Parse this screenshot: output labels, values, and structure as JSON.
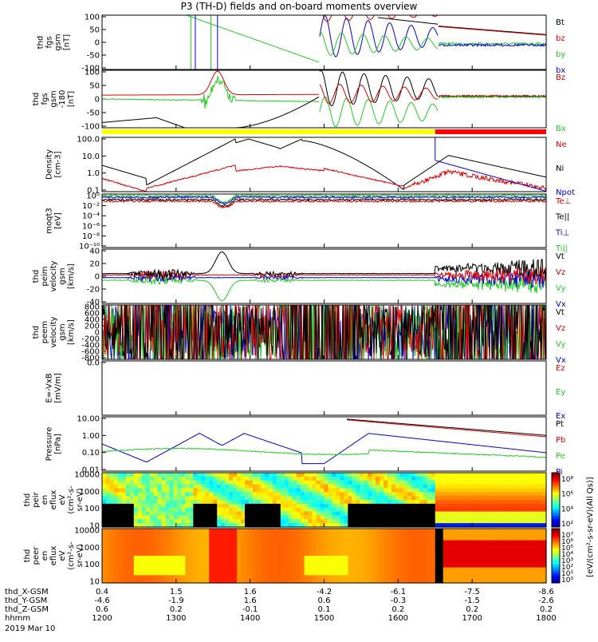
{
  "title": "P3 (TH-D) fields and on-board moments overview",
  "colors": {
    "black": "#000000",
    "red": "#e00000",
    "green": "#22cc22",
    "blue": "#0000d0",
    "yellow": "#ffff00",
    "barred": "#ff0000"
  },
  "chart_data": [
    {
      "type": "line",
      "panel": "fgs",
      "ylabel": [
        "thd",
        "fgs",
        "gsm",
        "[nT]"
      ],
      "yticks": [
        "100",
        "50",
        "0",
        "-50",
        "-100"
      ],
      "legend": [
        "Bt",
        "bz",
        "by",
        "bx"
      ],
      "ylim": [
        -100,
        100
      ]
    },
    {
      "type": "line",
      "panel": "fgs_dsl",
      "ylabel": [
        "thd",
        "fgs",
        "gsm",
        "-180",
        "[nT]"
      ],
      "yticks": [
        "100",
        "50",
        "0",
        "-50",
        "-100"
      ],
      "legend": [
        "Bz",
        "Bx"
      ],
      "ylim": [
        -120,
        100
      ]
    },
    {
      "type": "line",
      "panel": "density",
      "ylabel": [
        "Density",
        "[cm-3]"
      ],
      "yticks": [
        "100.0",
        "10.0",
        "1.0",
        "0.1"
      ],
      "legend": [
        "Ne",
        "Ni",
        "Npot"
      ],
      "scale": "log"
    },
    {
      "type": "line",
      "panel": "temperature",
      "ylabel": [
        "moqt3",
        "[eV]"
      ],
      "yticks": [
        "10⁰",
        "10⁻²",
        "10⁻⁴",
        "10⁻⁶",
        "10⁻⁸",
        "10⁻¹⁰"
      ],
      "legend": [
        "Te⊥",
        "Te||",
        "Ti⊥",
        "Ti||"
      ],
      "scale": "log"
    },
    {
      "type": "line",
      "panel": "peim_velocity",
      "ylabel": [
        "thd",
        "peim",
        "velocity",
        "gsm",
        "[km/s]"
      ],
      "yticks": [
        "40",
        "20",
        "0",
        "-20",
        "-40"
      ],
      "legend": [
        "Vt",
        "Vz",
        "Vy",
        "Vx"
      ],
      "ylim": [
        -40,
        40
      ]
    },
    {
      "type": "line",
      "panel": "peem_velocity",
      "ylabel": [
        "thd",
        "peem",
        "velocity",
        "gsm",
        "[km/s]"
      ],
      "yticks": [
        "800",
        "600",
        "400",
        "200",
        "0",
        "-200",
        "-400",
        "-600",
        "-800"
      ],
      "legend": [
        "Vt",
        "Vz",
        "Vy",
        "Vx"
      ],
      "ylim": [
        -800,
        800
      ]
    },
    {
      "type": "line",
      "panel": "efield",
      "ylabel": [
        "E=-VxB",
        "[mV/m]"
      ],
      "yticks": [
        "0.0"
      ],
      "legend": [
        "Ez",
        "Ey",
        "Ex"
      ]
    },
    {
      "type": "line",
      "panel": "pressure",
      "ylabel": [
        "Pressure",
        "[nPa]"
      ],
      "yticks": [
        "10.00",
        "1.00",
        "0.10",
        "0.01"
      ],
      "legend": [
        "Pt",
        "Pb",
        "Pe",
        "Pi"
      ],
      "scale": "log"
    },
    {
      "type": "heatmap",
      "panel": "peir_en_eflux",
      "ylabel": [
        "thd",
        "peir",
        "en",
        "eflux",
        "eV",
        "(cm²-s-",
        "sr-eV)"
      ],
      "yticks": [
        "10000",
        "1000",
        "100",
        "10"
      ],
      "colorbar_ticks": [
        "10⁸",
        "10⁶",
        "10⁴",
        "10²"
      ]
    },
    {
      "type": "heatmap",
      "panel": "peer_en_eflux",
      "ylabel": [
        "thd",
        "peer",
        "en",
        "eflux",
        "eV",
        "(cm²-s-",
        "sr-eV)"
      ],
      "yticks": [
        "10000",
        "1000",
        "100",
        "10"
      ],
      "colorbar_ticks": [
        "10⁷",
        "10⁶",
        "10⁵",
        "10⁴",
        "10³",
        "10²",
        "10¹",
        "10⁰"
      ]
    }
  ],
  "colorbar_label": "[eV/(cm²-s-sr-eV)(All Qs)]",
  "x_rows": [
    {
      "label": "thd_X-GSM",
      "values": [
        "0.4",
        "1.5",
        "1.6",
        "-4.2",
        "-6.1",
        "-7.5",
        "-8.6"
      ]
    },
    {
      "label": "thd_Y-GSM",
      "values": [
        "-4.6",
        "-1.9",
        "1.6",
        "0.6",
        "-0.3",
        "-1.5",
        "-2.6"
      ]
    },
    {
      "label": "thd_Z-GSM",
      "values": [
        "0.6",
        "0.2",
        "-0.1",
        "0.1",
        "0.2",
        "0.2",
        "0.2"
      ]
    },
    {
      "label": "hhmm",
      "values": [
        "1200",
        "1300",
        "1400",
        "1500",
        "1600",
        "1700",
        "1800"
      ]
    }
  ],
  "date": "2019 Mar 10"
}
